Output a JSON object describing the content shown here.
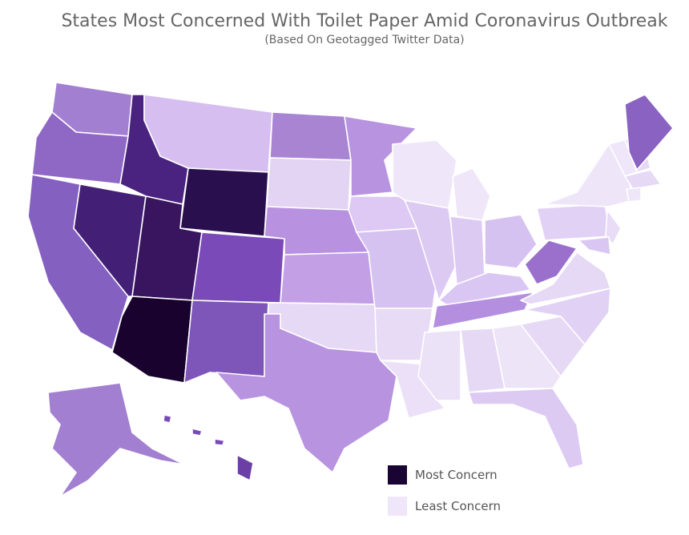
{
  "title": "States Most Concerned With Toilet Paper Amid Coronavirus Outbreak",
  "subtitle": "(Based On Geotagged Twitter Data)",
  "legend": [
    {
      "label": "Most Concern",
      "color": "#1a0433"
    },
    {
      "label": "Least Concern",
      "color": "#efe6fa"
    }
  ]
}
